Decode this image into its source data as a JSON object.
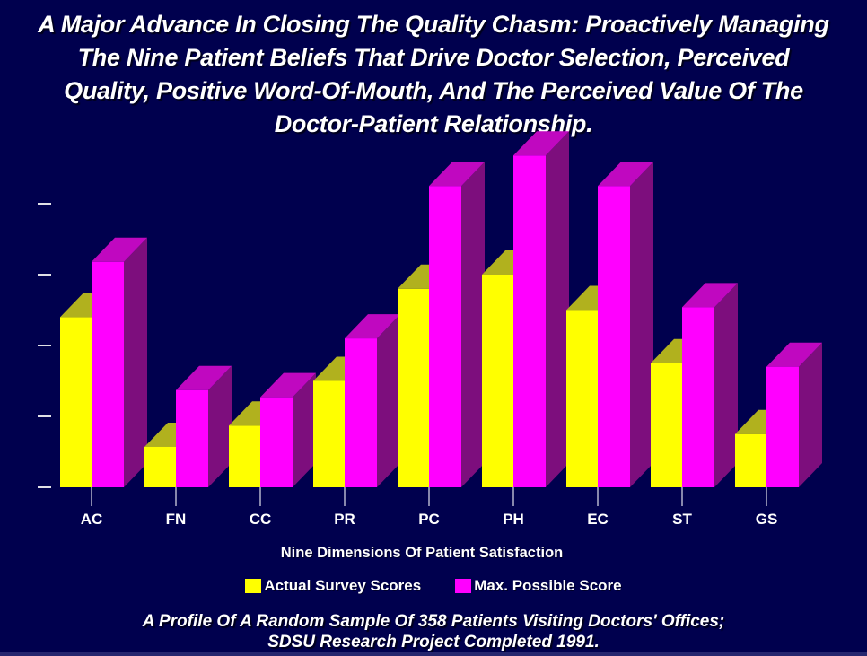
{
  "slide": {
    "background_color": "#00004e",
    "text_color": "#ffffff",
    "bottom_edge_color": "#26266e",
    "title_lines": [
      "A Major Advance In Closing The Quality Chasm: Proactively Managing",
      "The Nine Patient Beliefs That Drive Doctor Selection, Perceived",
      "Quality, Positive Word-Of-Mouth, And The Perceived Value Of The",
      "Doctor-Patient Relationship."
    ],
    "footer_lines": [
      "A Profile Of A Random Sample Of 358 Patients Visiting Doctors' Offices;",
      "SDSU Research Project Completed 1991."
    ]
  },
  "chart": {
    "x_axis_title": "Nine Dimensions Of Patient Satisfaction",
    "legend": [
      {
        "label": "Actual Survey Scores",
        "color": "#ffff00"
      },
      {
        "label": "Max. Possible Score",
        "color": "#ff00ff"
      }
    ]
  },
  "chart_data": {
    "type": "bar",
    "style": "3d-paired-columns",
    "title": "",
    "xlabel": "Nine Dimensions Of Patient Satisfaction",
    "ylabel": "",
    "categories": [
      "AC",
      "FN",
      "CC",
      "PR",
      "PC",
      "PH",
      "EC",
      "ST",
      "GS"
    ],
    "series": [
      {
        "name": "Actual Survey Scores",
        "color_front": "#ffff00",
        "color_top": "#b1b11e",
        "color_side": "#8a8a14",
        "values": [
          2.4,
          0.57,
          0.87,
          1.5,
          2.8,
          3.0,
          2.5,
          1.75,
          0.75
        ]
      },
      {
        "name": "Max. Possible Score",
        "color_front": "#ff00ff",
        "color_top": "#c008c0",
        "color_side": "#7d0e7d",
        "values": [
          3.18,
          1.37,
          1.27,
          2.1,
          4.25,
          4.68,
          4.25,
          2.54,
          1.7
        ]
      }
    ],
    "y_axis": {
      "tick_count": 5,
      "tick_labels_visible": false,
      "range_in_tick_units": [
        0,
        5
      ],
      "gridlines": false
    },
    "legend_position": "bottom",
    "tick_color": "#e0e0e6",
    "x_tick_color": "#b4b4cc",
    "category_label_color": "#ffffff"
  }
}
